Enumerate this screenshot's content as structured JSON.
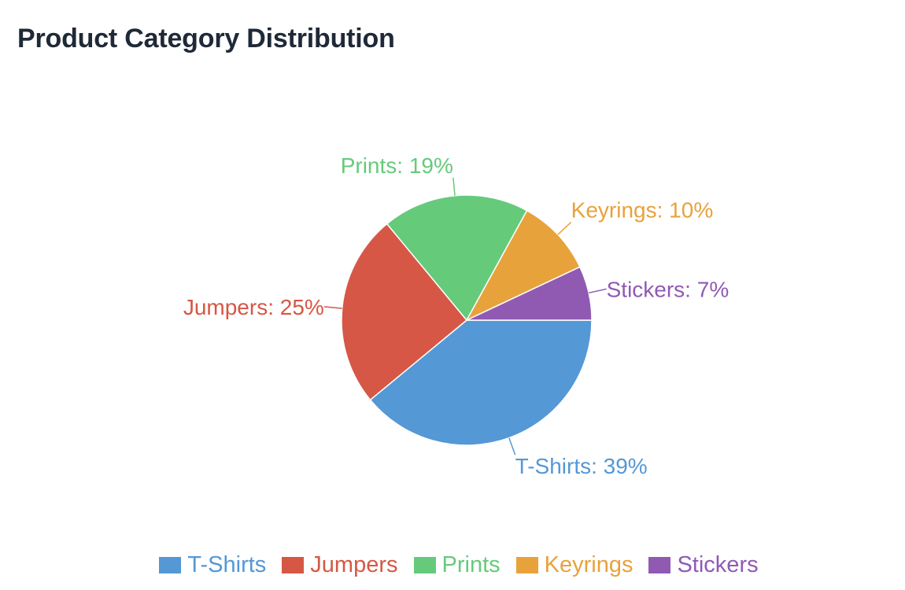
{
  "page": {
    "title": "Product Category Distribution"
  },
  "chart_data": {
    "type": "pie",
    "title": "Product Category Distribution",
    "legend_position": "bottom",
    "start": "3 o'clock, clockwise",
    "slices": [
      {
        "label": "T-Shirts",
        "value": 39,
        "label_text": "T-Shirts: 39%",
        "color": "#5498d6"
      },
      {
        "label": "Jumpers",
        "value": 25,
        "label_text": "Jumpers: 25%",
        "color": "#d65745"
      },
      {
        "label": "Prints",
        "value": 19,
        "label_text": "Prints: 19%",
        "color": "#66ca7b"
      },
      {
        "label": "Keyrings",
        "value": 10,
        "label_text": "Keyrings: 10%",
        "color": "#e8a23c"
      },
      {
        "label": "Stickers",
        "value": 7,
        "label_text": "Stickers: 7%",
        "color": "#905ab3"
      }
    ]
  }
}
